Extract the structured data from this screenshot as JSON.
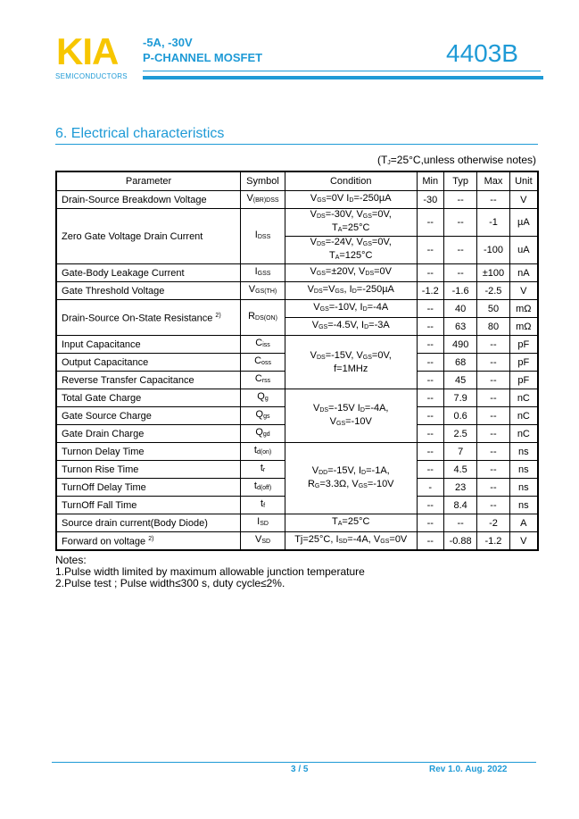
{
  "header": {
    "logo": "KIA",
    "logo_sub": "SEMICONDUCTORS",
    "rating": "-5A,  -30V",
    "type": "P-CHANNEL MOSFET",
    "part": "4403B",
    "brand_color": "#1e9ad6",
    "logo_color": "#f7c600"
  },
  "section": {
    "title": "6.  Electrical characteristics",
    "note_pre": "(T",
    "note_sub": "J",
    "note_post": "=25°C,unless otherwise notes)"
  },
  "table": {
    "headers": [
      "Parameter",
      "Symbol",
      "Condition",
      "Min",
      "Typ",
      "Max",
      "Unit"
    ],
    "groups": [
      {
        "param": "Drain-Source Breakdown Voltage",
        "sym": [
          "V",
          {
            "s": "(BR)DSS"
          }
        ],
        "rows": [
          {
            "cond": [
              "V",
              {
                "s": "GS"
              },
              "=0V I",
              {
                "s": "D"
              },
              "=-250µA"
            ],
            "min": "-30",
            "typ": "--",
            "max": "--",
            "unit": "V"
          }
        ]
      },
      {
        "param": "Zero Gate Voltage Drain Current",
        "sym": [
          "I",
          {
            "s": "DSS"
          }
        ],
        "dbl": true,
        "rows": [
          {
            "cond": [
              "V",
              {
                "s": "DS"
              },
              "=-30V, V",
              {
                "s": "GS"
              },
              "=0V,",
              {
                "br": 1
              },
              "T",
              {
                "s": "A"
              },
              "=25°C"
            ],
            "min": "--",
            "typ": "--",
            "max": "-1",
            "unit": "µA"
          },
          {
            "cond": [
              "V",
              {
                "s": "DS"
              },
              "=-24V, V",
              {
                "s": "GS"
              },
              "=0V,",
              {
                "br": 1
              },
              "T",
              {
                "s": "A"
              },
              "=125°C"
            ],
            "min": "--",
            "typ": "--",
            "max": "-100",
            "unit": "uA"
          }
        ]
      },
      {
        "param": "Gate-Body Leakage Current",
        "sym": [
          "I",
          {
            "s": "GSS"
          }
        ],
        "rows": [
          {
            "cond": [
              "V",
              {
                "s": "GS"
              },
              "=±20V, V",
              {
                "s": "DS"
              },
              "=0V"
            ],
            "min": "--",
            "typ": "--",
            "max": "±100",
            "unit": "nA"
          }
        ]
      },
      {
        "param": "Gate Threshold Voltage",
        "sym": [
          "V",
          {
            "s": "GS(TH)"
          }
        ],
        "rows": [
          {
            "cond": [
              "V",
              {
                "s": "DS"
              },
              "=V",
              {
                "s": "GS"
              },
              ", I",
              {
                "s": "D"
              },
              "=-250µA"
            ],
            "min": "-1.2",
            "typ": "-1.6",
            "max": "-2.5",
            "unit": "V"
          }
        ]
      },
      {
        "param": "Drain-Source On-State Resistance",
        "sup": "2)",
        "sym": [
          "R",
          {
            "s": "DS(ON)"
          }
        ],
        "rows": [
          {
            "cond": [
              "V",
              {
                "s": "GS"
              },
              "=-10V, I",
              {
                "s": "D"
              },
              "=-4A"
            ],
            "min": "--",
            "typ": "40",
            "max": "50",
            "unit": "mΩ"
          },
          {
            "cond": [
              "V",
              {
                "s": "GS"
              },
              "=-4.5V, I",
              {
                "s": "D"
              },
              "=-3A"
            ],
            "min": "--",
            "typ": "63",
            "max": "80",
            "unit": "mΩ"
          }
        ]
      }
    ],
    "shared": [
      {
        "cond": [
          "V",
          {
            "s": "DS"
          },
          "=-15V, V",
          {
            "s": "GS"
          },
          "=0V,",
          {
            "br": 1
          },
          "f=1MHz"
        ],
        "rows": [
          {
            "param": "Input Capacitance",
            "sym": [
              "C",
              {
                "s": "iss"
              }
            ],
            "min": "--",
            "typ": "490",
            "max": "--",
            "unit": "pF"
          },
          {
            "param": "Output Capacitance",
            "sym": [
              "C",
              {
                "s": "oss"
              }
            ],
            "min": "--",
            "typ": "68",
            "max": "--",
            "unit": "pF"
          },
          {
            "param": "Reverse Transfer Capacitance",
            "sym": [
              "C",
              {
                "s": "rss"
              }
            ],
            "min": "--",
            "typ": "45",
            "max": "--",
            "unit": "pF"
          }
        ]
      },
      {
        "cond": [
          "V",
          {
            "s": "DS"
          },
          "=-15V I",
          {
            "s": "D"
          },
          "=-4A,",
          {
            "br": 1
          },
          "V",
          {
            "s": "GS"
          },
          "=-10V"
        ],
        "rows": [
          {
            "param": "Total Gate Charge",
            "sym": [
              "Q",
              {
                "s": "g"
              }
            ],
            "min": "--",
            "typ": "7.9",
            "max": "--",
            "unit": "nC"
          },
          {
            "param": "Gate Source Charge",
            "sym": [
              "Q",
              {
                "s": "gs"
              }
            ],
            "min": "--",
            "typ": "0.6",
            "max": "--",
            "unit": "nC"
          },
          {
            "param": "Gate Drain Charge",
            "sym": [
              "Q",
              {
                "s": "gd"
              }
            ],
            "min": "--",
            "typ": "2.5",
            "max": "--",
            "unit": "nC"
          }
        ]
      },
      {
        "cond": [
          "V",
          {
            "s": "DD"
          },
          "=-15V, I",
          {
            "s": "D"
          },
          "=-1A,",
          {
            "br": 1
          },
          "R",
          {
            "s": "G"
          },
          "=3.3Ω, V",
          {
            "s": "GS"
          },
          "=-10V"
        ],
        "rows": [
          {
            "param": "Turnon Delay Time",
            "sym": [
              "t",
              {
                "s": "d(on)"
              }
            ],
            "min": "--",
            "typ": "7",
            "max": "--",
            "unit": "ns"
          },
          {
            "param": "Turnon Rise Time",
            "sym": [
              "t",
              {
                "s": "r"
              }
            ],
            "min": "--",
            "typ": "4.5",
            "max": "--",
            "unit": "ns"
          },
          {
            "param": "TurnOff Delay Time",
            "sym": [
              "t",
              {
                "s": "d(off)"
              }
            ],
            "min": "-",
            "typ": "23",
            "max": "--",
            "unit": "ns"
          },
          {
            "param": "TurnOff Fall Time",
            "sym": [
              "t",
              {
                "s": "f"
              }
            ],
            "min": "--",
            "typ": "8.4",
            "max": "--",
            "unit": "ns"
          }
        ]
      },
      {
        "cond": [
          "T",
          {
            "s": "A"
          },
          "=25°C"
        ],
        "rows": [
          {
            "param": "Source drain current(Body Diode)",
            "sym": [
              "I",
              {
                "s": "SD"
              }
            ],
            "min": "--",
            "typ": "--",
            "max": "-2",
            "unit": "A"
          }
        ]
      },
      {
        "cond": [
          "Tj=25°C, I",
          {
            "s": "SD"
          },
          "=-4A, V",
          {
            "s": "GS"
          },
          "=0V"
        ],
        "rows": [
          {
            "param": "Forward on voltage",
            "sup": "2)",
            "sym": [
              "V",
              {
                "s": "SD"
              }
            ],
            "min": "--",
            "typ": "-0.88",
            "max": "-1.2",
            "unit": "V"
          }
        ]
      }
    ]
  },
  "notes": {
    "title": "Notes:",
    "items": [
      "1.Pulse width limited by maximum allowable junction temperature",
      "2.Pulse test ; Pulse width≤300    s, duty cycle≤2%."
    ]
  },
  "footer": {
    "page": "3 / 5",
    "rev": "Rev 1.0. Aug. 2022"
  }
}
